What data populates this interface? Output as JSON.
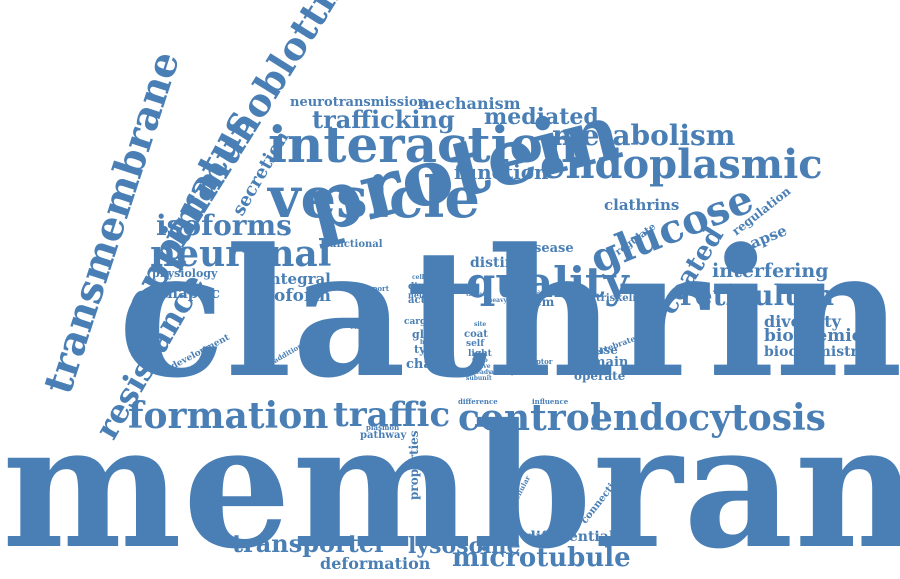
{
  "cloud": {
    "color": "#4a7fb5",
    "words": [
      "membrane",
      "clathrin",
      "protein",
      "vesicle",
      "interaction",
      "endoplasmic",
      "reticulum",
      "quality",
      "glucose",
      "metabolism",
      "formation",
      "traffic",
      "control",
      "endocytosis",
      "transmembrane",
      "immunoblotting",
      "apparatus",
      "resistance",
      "neuronal",
      "isoforms",
      "trafficking",
      "mediated",
      "neurotransmission",
      "mechanism",
      "secretion",
      "function",
      "coated",
      "transporter",
      "lysosome",
      "microtubule",
      "deformation",
      "differential",
      "interfering",
      "diversity",
      "biochemical",
      "biochemistry",
      "synapse",
      "regulation",
      "regulate",
      "clathrins",
      "disease",
      "distinct",
      "system",
      "triskelion",
      "integral",
      "isoform",
      "synaptic",
      "physiology",
      "functional",
      "development",
      "chain",
      "type",
      "glut",
      "actin",
      "cargo",
      "coat",
      "self",
      "light",
      "mouse",
      "domain",
      "operate",
      "vertebrate",
      "properties",
      "pathway",
      "plasmon",
      "difference",
      "influence",
      "intracellular",
      "connecting",
      "additional",
      "chimera",
      "transport",
      "display",
      "cellular",
      "adaptor",
      "interplay",
      "specific",
      "heavy",
      "subunit",
      "native",
      "steady",
      "activity",
      "neuron",
      "mass",
      "vitro",
      "tissue",
      "site",
      "have"
    ]
  }
}
